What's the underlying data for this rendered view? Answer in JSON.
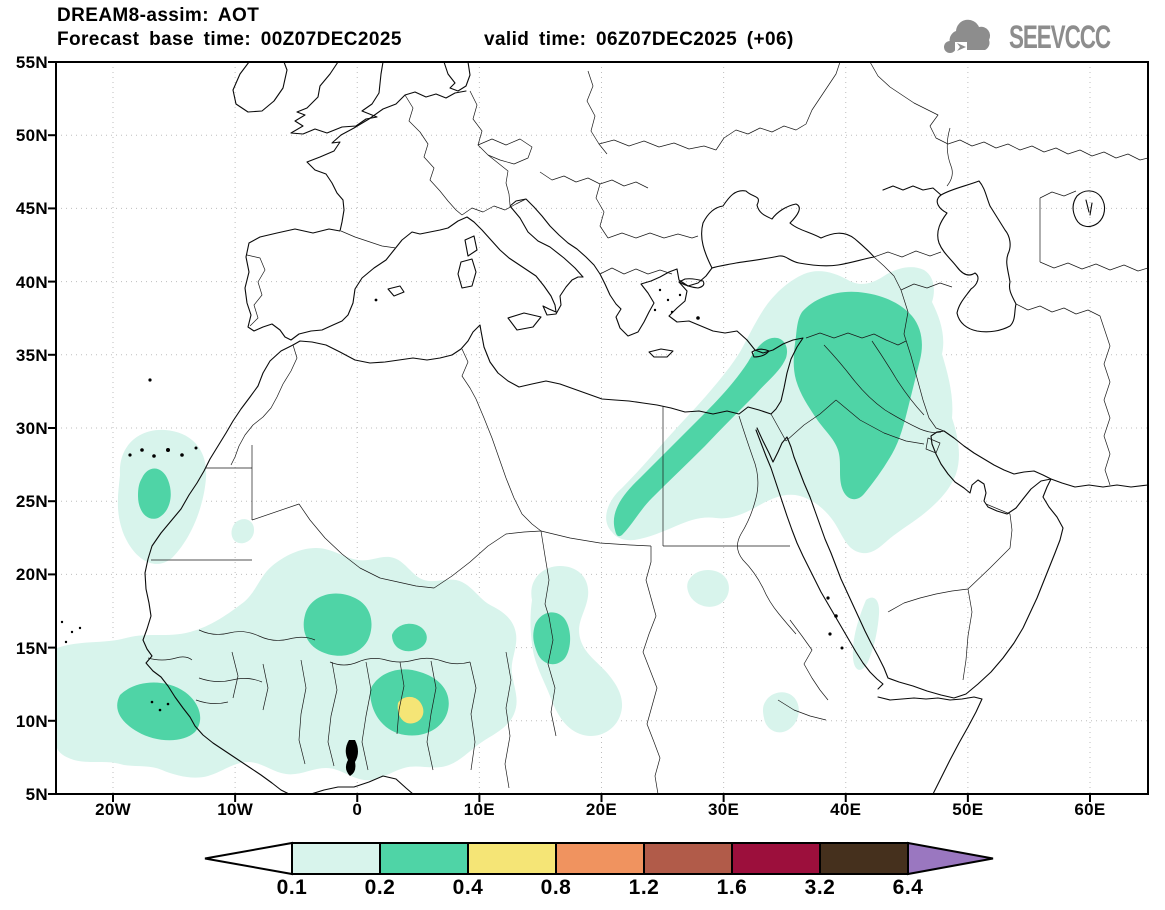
{
  "header": {
    "title": "DREAM8-assim: AOT",
    "forecast_base": "Forecast base time: 00Z07DEC2025",
    "valid_time": "valid time: 06Z07DEC2025 (+06)"
  },
  "logo": {
    "text": "SEEVCCC"
  },
  "axes": {
    "lat_labels": [
      "55N",
      "50N",
      "45N",
      "40N",
      "35N",
      "30N",
      "25N",
      "20N",
      "15N",
      "10N",
      "5N"
    ],
    "lon_labels": [
      "20W",
      "10W",
      "0",
      "10E",
      "20E",
      "30E",
      "40E",
      "50E",
      "60E"
    ]
  },
  "colorbar": {
    "values": [
      "0.1",
      "0.2",
      "0.4",
      "0.8",
      "1.2",
      "1.6",
      "3.2",
      "6.4"
    ],
    "cell_colors": [
      "#d8f4ec",
      "#4fd4a6",
      "#f5e576",
      "#f0935f",
      "#b15b49",
      "#9c0f3c",
      "#45301d"
    ],
    "below_min_color": "#ffffff",
    "above_max_color": "#9a77c0",
    "outline_color": "#000000"
  },
  "chart_data": {
    "type": "filled-contour-map",
    "variable": "AOT (aerosol optical thickness)",
    "model": "DREAM8-assim",
    "forecast_base_time": "00Z07DEC2025",
    "valid_time": "06Z07DEC2025",
    "forecast_hour": "+06",
    "levels": [
      0.1,
      0.2,
      0.4,
      0.8,
      1.2,
      1.6,
      3.2,
      6.4
    ],
    "level_colors": {
      "0.1-0.2": "#d8f4ec",
      "0.2-0.4": "#4fd4a6",
      "0.4-0.8": "#f5e576",
      "0.8-1.2": "#f0935f",
      "1.2-1.6": "#b15b49",
      "1.6-3.2": "#9c0f3c",
      "3.2-6.4": "#45301d",
      "above-6.4": "#9a77c0"
    },
    "map_extent": {
      "lon_min": -25,
      "lon_max": 65,
      "lat_min": 5,
      "lat_max": 55
    },
    "grid_spacing": {
      "lat_deg": 5,
      "lon_deg": 10
    },
    "shaded_regions": [
      {
        "area": "NW Africa coast / Canary Islands (Western Sahara, ~20W-13W, 23N-30N)",
        "max_level": "0.2-0.4"
      },
      {
        "area": "West Africa / Sahel (Senegal-Guinea-Mali-Niger, 20W-8E, 5N-21N)",
        "max_level": "0.2-0.4"
      },
      {
        "area": "SW Niger / N Benin spot (~3E-4E, 10N-11N)",
        "max_level": "0.4-0.8"
      },
      {
        "area": "Central Chad band (~13E-17E, 8N-17N)",
        "max_level": "0.2-0.4"
      },
      {
        "area": "Egypt-Levant-Cyprus diagonal plume (25E-36E, 24N-37N)",
        "max_level": "0.2-0.4"
      },
      {
        "area": "Syria / Iraq / N Saudi Arabia (36E-47E, 26N-38N)",
        "max_level": "0.2-0.4"
      },
      {
        "area": "Sudan Red Sea coast strip (~36E-38E, 14N-21N)",
        "max_level": "0.1-0.2"
      },
      {
        "area": "S Sudan spot (~27E-30E, 13N-15N)",
        "max_level": "0.1-0.2"
      },
      {
        "area": "W Ethiopia spot (~33E-36E, 8N-11N)",
        "max_level": "0.1-0.2"
      }
    ]
  }
}
